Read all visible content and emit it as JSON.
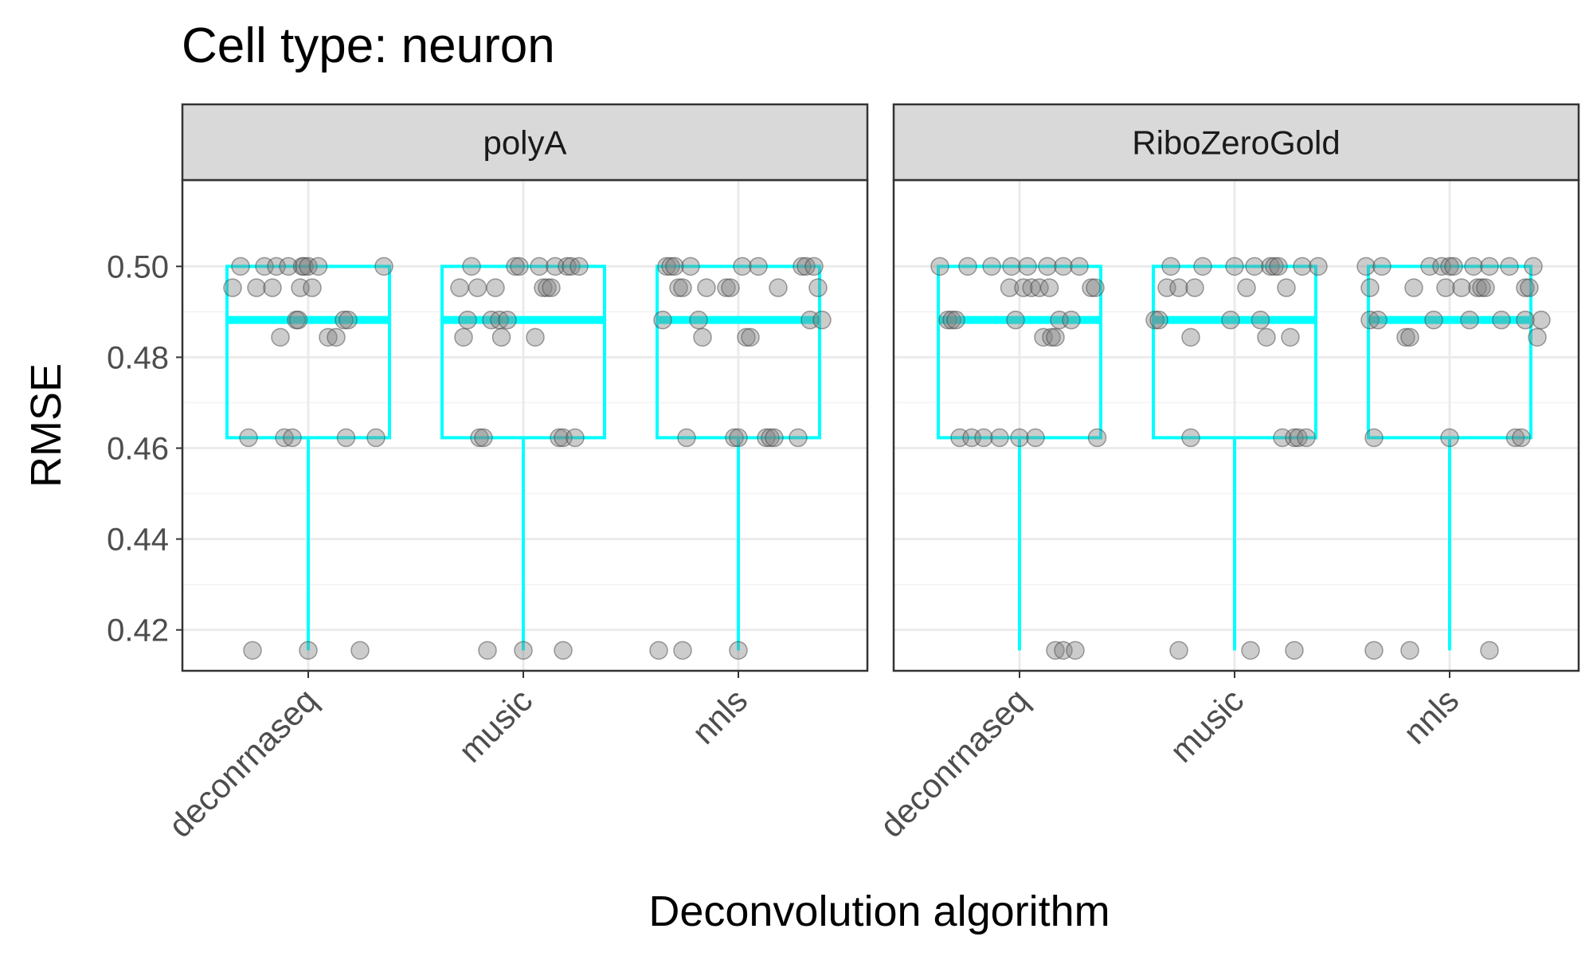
{
  "chart_data": {
    "type": "boxplot",
    "title": "Cell type: neuron",
    "xlabel": "Deconvolution algorithm",
    "ylabel": "RMSE",
    "ylim": [
      0.411,
      0.519
    ],
    "yticks": [
      0.42,
      0.44,
      0.46,
      0.48,
      0.5
    ],
    "ytick_labels": [
      "0.42",
      "0.44",
      "0.46",
      "0.48",
      "0.50"
    ],
    "categories": [
      "deconrnaseq",
      "music",
      "nnls"
    ],
    "grid": true,
    "box_color": "#00FFFF",
    "point_color": "#7f7f7f",
    "panels": [
      {
        "name": "polyA",
        "boxes": [
          {
            "category": "deconrnaseq",
            "min": 0.4155,
            "q1": 0.4623,
            "median": 0.4882,
            "q3": 0.5,
            "max": 0.5
          },
          {
            "category": "music",
            "min": 0.4155,
            "q1": 0.4623,
            "median": 0.4882,
            "q3": 0.5,
            "max": 0.5
          },
          {
            "category": "nnls",
            "min": 0.4155,
            "q1": 0.4623,
            "median": 0.4882,
            "q3": 0.5,
            "max": 0.5
          }
        ],
        "points": {
          "deconrnaseq": [
            [
              -0.38,
              0.4953
            ],
            [
              -0.34,
              0.5
            ],
            [
              -0.3,
              0.4623
            ],
            [
              -0.26,
              0.4953
            ],
            [
              -0.22,
              0.5
            ],
            [
              -0.18,
              0.4953
            ],
            [
              -0.16,
              0.5
            ],
            [
              -0.14,
              0.4844
            ],
            [
              -0.12,
              0.4623
            ],
            [
              -0.1,
              0.5
            ],
            [
              -0.08,
              0.4623
            ],
            [
              -0.06,
              0.4882
            ],
            [
              -0.05,
              0.4882
            ],
            [
              -0.04,
              0.4953
            ],
            [
              -0.03,
              0.5
            ],
            [
              -0.02,
              0.5
            ],
            [
              0.0,
              0.5
            ],
            [
              0.02,
              0.4953
            ],
            [
              0.05,
              0.5
            ],
            [
              0.1,
              0.4844
            ],
            [
              0.14,
              0.4844
            ],
            [
              0.18,
              0.4882
            ],
            [
              0.2,
              0.4882
            ],
            [
              0.19,
              0.4623
            ],
            [
              0.34,
              0.4623
            ],
            [
              0.38,
              0.5
            ],
            [
              -0.28,
              0.4155
            ],
            [
              0.0,
              0.4155
            ],
            [
              0.26,
              0.4155
            ]
          ],
          "music": [
            [
              -0.32,
              0.4953
            ],
            [
              -0.3,
              0.4844
            ],
            [
              -0.28,
              0.4882
            ],
            [
              -0.26,
              0.5
            ],
            [
              -0.23,
              0.4953
            ],
            [
              -0.22,
              0.4623
            ],
            [
              -0.2,
              0.4623
            ],
            [
              -0.16,
              0.4882
            ],
            [
              -0.14,
              0.4953
            ],
            [
              -0.12,
              0.4882
            ],
            [
              -0.11,
              0.4844
            ],
            [
              -0.08,
              0.4882
            ],
            [
              -0.04,
              0.5
            ],
            [
              -0.02,
              0.5
            ],
            [
              0.06,
              0.4844
            ],
            [
              0.08,
              0.5
            ],
            [
              0.1,
              0.4953
            ],
            [
              0.12,
              0.4953
            ],
            [
              0.14,
              0.4953
            ],
            [
              0.16,
              0.5
            ],
            [
              0.18,
              0.4623
            ],
            [
              0.2,
              0.4623
            ],
            [
              0.22,
              0.5
            ],
            [
              0.24,
              0.5
            ],
            [
              0.26,
              0.4623
            ],
            [
              0.28,
              0.5
            ],
            [
              -0.18,
              0.4155
            ],
            [
              0.0,
              0.4155
            ],
            [
              0.2,
              0.4155
            ]
          ],
          "nnls": [
            [
              -0.38,
              0.4882
            ],
            [
              -0.36,
              0.5
            ],
            [
              -0.34,
              0.5
            ],
            [
              -0.32,
              0.5
            ],
            [
              -0.3,
              0.4953
            ],
            [
              -0.28,
              0.4953
            ],
            [
              -0.26,
              0.4623
            ],
            [
              -0.24,
              0.5
            ],
            [
              -0.2,
              0.4882
            ],
            [
              -0.18,
              0.4844
            ],
            [
              -0.16,
              0.4953
            ],
            [
              -0.06,
              0.4953
            ],
            [
              -0.04,
              0.4953
            ],
            [
              -0.02,
              0.4623
            ],
            [
              0.0,
              0.4623
            ],
            [
              0.02,
              0.5
            ],
            [
              0.04,
              0.4844
            ],
            [
              0.06,
              0.4844
            ],
            [
              0.1,
              0.5
            ],
            [
              0.14,
              0.4623
            ],
            [
              0.16,
              0.4623
            ],
            [
              0.18,
              0.4623
            ],
            [
              0.2,
              0.4953
            ],
            [
              0.3,
              0.4623
            ],
            [
              0.32,
              0.5
            ],
            [
              0.34,
              0.5
            ],
            [
              0.36,
              0.4882
            ],
            [
              0.38,
              0.5
            ],
            [
              0.4,
              0.4953
            ],
            [
              0.42,
              0.4882
            ],
            [
              -0.4,
              0.4155
            ],
            [
              -0.28,
              0.4155
            ],
            [
              0.0,
              0.4155
            ]
          ]
        }
      },
      {
        "name": "RiboZeroGold",
        "boxes": [
          {
            "category": "deconrnaseq",
            "min": 0.4155,
            "q1": 0.4623,
            "median": 0.4882,
            "q3": 0.5,
            "max": 0.5
          },
          {
            "category": "music",
            "min": 0.4155,
            "q1": 0.4623,
            "median": 0.4882,
            "q3": 0.5,
            "max": 0.5
          },
          {
            "category": "nnls",
            "min": 0.4155,
            "q1": 0.4623,
            "median": 0.4882,
            "q3": 0.5,
            "max": 0.5
          }
        ],
        "points": {
          "deconrnaseq": [
            [
              -0.4,
              0.5
            ],
            [
              -0.36,
              0.4882
            ],
            [
              -0.34,
              0.4882
            ],
            [
              -0.32,
              0.4882
            ],
            [
              -0.3,
              0.4623
            ],
            [
              -0.26,
              0.5
            ],
            [
              -0.24,
              0.4623
            ],
            [
              -0.18,
              0.4623
            ],
            [
              -0.14,
              0.5
            ],
            [
              -0.1,
              0.4623
            ],
            [
              -0.05,
              0.4953
            ],
            [
              -0.04,
              0.5
            ],
            [
              -0.02,
              0.4882
            ],
            [
              0.0,
              0.4623
            ],
            [
              0.02,
              0.4953
            ],
            [
              0.04,
              0.5
            ],
            [
              0.06,
              0.4953
            ],
            [
              0.08,
              0.4623
            ],
            [
              0.1,
              0.4953
            ],
            [
              0.12,
              0.4844
            ],
            [
              0.14,
              0.5
            ],
            [
              0.15,
              0.4953
            ],
            [
              0.16,
              0.4844
            ],
            [
              0.18,
              0.4844
            ],
            [
              0.2,
              0.4882
            ],
            [
              0.22,
              0.5
            ],
            [
              0.26,
              0.4882
            ],
            [
              0.3,
              0.5
            ],
            [
              0.36,
              0.4953
            ],
            [
              0.38,
              0.4953
            ],
            [
              0.39,
              0.4623
            ],
            [
              0.18,
              0.4155
            ],
            [
              0.22,
              0.4155
            ],
            [
              0.28,
              0.4155
            ]
          ],
          "music": [
            [
              -0.4,
              0.4882
            ],
            [
              -0.38,
              0.4882
            ],
            [
              -0.34,
              0.4953
            ],
            [
              -0.32,
              0.5
            ],
            [
              -0.28,
              0.4953
            ],
            [
              -0.22,
              0.4844
            ],
            [
              -0.2,
              0.4953
            ],
            [
              -0.16,
              0.5
            ],
            [
              -0.22,
              0.4623
            ],
            [
              -0.02,
              0.4882
            ],
            [
              0.0,
              0.5
            ],
            [
              0.06,
              0.4953
            ],
            [
              0.1,
              0.5
            ],
            [
              0.13,
              0.4882
            ],
            [
              0.16,
              0.4844
            ],
            [
              0.18,
              0.5
            ],
            [
              0.2,
              0.5
            ],
            [
              0.22,
              0.5
            ],
            [
              0.24,
              0.4623
            ],
            [
              0.26,
              0.4953
            ],
            [
              0.28,
              0.4844
            ],
            [
              0.3,
              0.4623
            ],
            [
              0.32,
              0.4623
            ],
            [
              0.34,
              0.5
            ],
            [
              0.36,
              0.4623
            ],
            [
              0.42,
              0.5
            ],
            [
              -0.28,
              0.4155
            ],
            [
              0.08,
              0.4155
            ],
            [
              0.3,
              0.4155
            ]
          ],
          "nnls": [
            [
              -0.42,
              0.5
            ],
            [
              -0.4,
              0.4953
            ],
            [
              -0.4,
              0.4882
            ],
            [
              -0.36,
              0.4882
            ],
            [
              -0.38,
              0.4623
            ],
            [
              -0.34,
              0.5
            ],
            [
              -0.22,
              0.4844
            ],
            [
              -0.2,
              0.4844
            ],
            [
              -0.18,
              0.4953
            ],
            [
              -0.1,
              0.5
            ],
            [
              -0.08,
              0.4882
            ],
            [
              -0.04,
              0.5
            ],
            [
              -0.02,
              0.4953
            ],
            [
              0.0,
              0.5
            ],
            [
              0.02,
              0.5
            ],
            [
              0.0,
              0.4623
            ],
            [
              0.06,
              0.4953
            ],
            [
              0.1,
              0.4882
            ],
            [
              0.12,
              0.5
            ],
            [
              0.14,
              0.4953
            ],
            [
              0.16,
              0.4953
            ],
            [
              0.18,
              0.4953
            ],
            [
              0.2,
              0.5
            ],
            [
              0.26,
              0.4882
            ],
            [
              0.3,
              0.5
            ],
            [
              0.33,
              0.4623
            ],
            [
              0.36,
              0.4623
            ],
            [
              0.38,
              0.4953
            ],
            [
              0.4,
              0.4953
            ],
            [
              0.42,
              0.5
            ],
            [
              0.44,
              0.4844
            ],
            [
              0.46,
              0.4882
            ],
            [
              0.38,
              0.4882
            ],
            [
              -0.38,
              0.4155
            ],
            [
              -0.2,
              0.4155
            ],
            [
              0.2,
              0.4155
            ]
          ]
        }
      }
    ]
  }
}
